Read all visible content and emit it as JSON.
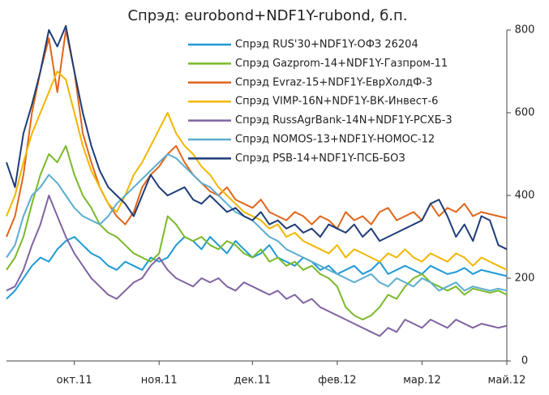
{
  "chart_data": {
    "type": "line",
    "title": "Спрэд: eurobond+NDF1Y-rubond, б.п.",
    "categories": [
      null,
      null,
      null,
      null,
      null,
      null,
      null,
      null,
      "окт.11",
      null,
      null,
      null,
      null,
      null,
      null,
      null,
      null,
      null,
      "ноя.11",
      null,
      null,
      null,
      null,
      null,
      null,
      null,
      null,
      null,
      null,
      "дек.11",
      null,
      null,
      null,
      null,
      null,
      null,
      null,
      null,
      null,
      "фев.12",
      null,
      null,
      null,
      null,
      null,
      null,
      null,
      null,
      null,
      "мар.12",
      null,
      null,
      null,
      null,
      null,
      null,
      null,
      null,
      null,
      "май.12"
    ],
    "ylim": [
      0,
      800
    ],
    "yticks": [
      0,
      200,
      400,
      600,
      800
    ],
    "grid": false,
    "legend": "top-right",
    "series": [
      {
        "name": "Спрэд RUS'30+NDF1Y-ОФЗ 26204",
        "color": "#1e9ad6",
        "values": [
          150,
          170,
          200,
          230,
          250,
          240,
          270,
          290,
          300,
          280,
          260,
          250,
          230,
          220,
          240,
          230,
          220,
          250,
          240,
          250,
          280,
          300,
          290,
          270,
          300,
          280,
          260,
          290,
          270,
          250,
          260,
          280,
          250,
          240,
          230,
          250,
          240,
          220,
          230,
          210,
          220,
          230,
          210,
          220,
          240,
          210,
          220,
          230,
          220,
          210,
          230,
          220,
          210,
          215,
          225,
          210,
          220,
          215,
          210,
          205
        ]
      },
      {
        "name": "Спрэд Gazprom-14+NDF1Y-Газпром-11",
        "color": "#7ab929",
        "values": [
          220,
          250,
          300,
          380,
          450,
          500,
          480,
          520,
          450,
          400,
          370,
          330,
          310,
          300,
          280,
          260,
          250,
          240,
          260,
          350,
          330,
          300,
          290,
          300,
          280,
          270,
          290,
          280,
          260,
          250,
          270,
          240,
          250,
          230,
          240,
          220,
          230,
          210,
          200,
          180,
          130,
          110,
          100,
          110,
          130,
          160,
          150,
          180,
          200,
          210,
          190,
          180,
          170,
          180,
          160,
          175,
          170,
          165,
          170,
          160
        ]
      },
      {
        "name": "Спрэд Evraz-15+NDF1Y-ЕврХолдФ-3",
        "color": "#e0661a",
        "values": [
          300,
          350,
          450,
          600,
          700,
          780,
          650,
          800,
          700,
          550,
          480,
          420,
          380,
          350,
          330,
          360,
          420,
          450,
          470,
          500,
          520,
          480,
          450,
          430,
          410,
          400,
          420,
          390,
          380,
          370,
          390,
          360,
          350,
          340,
          360,
          350,
          330,
          350,
          340,
          320,
          360,
          340,
          350,
          330,
          360,
          370,
          340,
          350,
          360,
          340,
          380,
          350,
          370,
          360,
          380,
          350,
          360,
          355,
          350,
          345
        ]
      },
      {
        "name": "Спрэд VIMP-16N+NDF1Y-ВК-Инвест-6",
        "color": "#f2b600",
        "values": [
          350,
          400,
          480,
          550,
          600,
          650,
          700,
          680,
          600,
          520,
          460,
          420,
          380,
          360,
          400,
          450,
          480,
          520,
          560,
          600,
          550,
          520,
          500,
          470,
          450,
          420,
          400,
          380,
          360,
          350,
          340,
          320,
          330,
          300,
          310,
          290,
          280,
          270,
          260,
          280,
          250,
          270,
          260,
          250,
          240,
          260,
          250,
          270,
          250,
          240,
          260,
          250,
          240,
          260,
          250,
          230,
          250,
          240,
          230,
          220
        ]
      },
      {
        "name": "Спрэд RussAgrBank-14N+NDF1Y-РСХБ-3",
        "color": "#8064a2",
        "values": [
          170,
          180,
          220,
          280,
          330,
          400,
          350,
          300,
          260,
          230,
          200,
          180,
          160,
          150,
          170,
          190,
          200,
          230,
          250,
          220,
          200,
          190,
          180,
          200,
          190,
          200,
          180,
          170,
          190,
          180,
          170,
          160,
          170,
          150,
          160,
          140,
          150,
          130,
          120,
          110,
          100,
          90,
          80,
          70,
          60,
          80,
          70,
          100,
          90,
          80,
          100,
          90,
          80,
          100,
          90,
          80,
          90,
          85,
          80,
          85
        ]
      },
      {
        "name": "Спрэд NOMOS-13+NDF1Y-НОМОС-12",
        "color": "#5badd0",
        "values": [
          250,
          280,
          350,
          400,
          420,
          450,
          430,
          400,
          370,
          350,
          340,
          330,
          350,
          380,
          400,
          420,
          440,
          460,
          480,
          500,
          490,
          470,
          450,
          430,
          420,
          400,
          380,
          360,
          350,
          340,
          320,
          300,
          290,
          270,
          260,
          250,
          240,
          230,
          220,
          210,
          200,
          190,
          200,
          210,
          190,
          180,
          200,
          190,
          180,
          200,
          190,
          170,
          180,
          190,
          170,
          180,
          175,
          170,
          175,
          170
        ]
      },
      {
        "name": "Спрэд PSB-14+NDF1Y-ПСБ-БОЗ",
        "color": "#1f3c78",
        "values": [
          480,
          420,
          550,
          620,
          700,
          800,
          760,
          810,
          700,
          600,
          520,
          460,
          420,
          400,
          380,
          350,
          400,
          450,
          420,
          400,
          410,
          420,
          390,
          380,
          400,
          380,
          360,
          370,
          350,
          340,
          360,
          330,
          340,
          320,
          330,
          310,
          320,
          300,
          330,
          320,
          310,
          330,
          300,
          320,
          290,
          300,
          310,
          320,
          330,
          340,
          380,
          390,
          350,
          300,
          330,
          290,
          350,
          340,
          280,
          270
        ]
      }
    ]
  }
}
